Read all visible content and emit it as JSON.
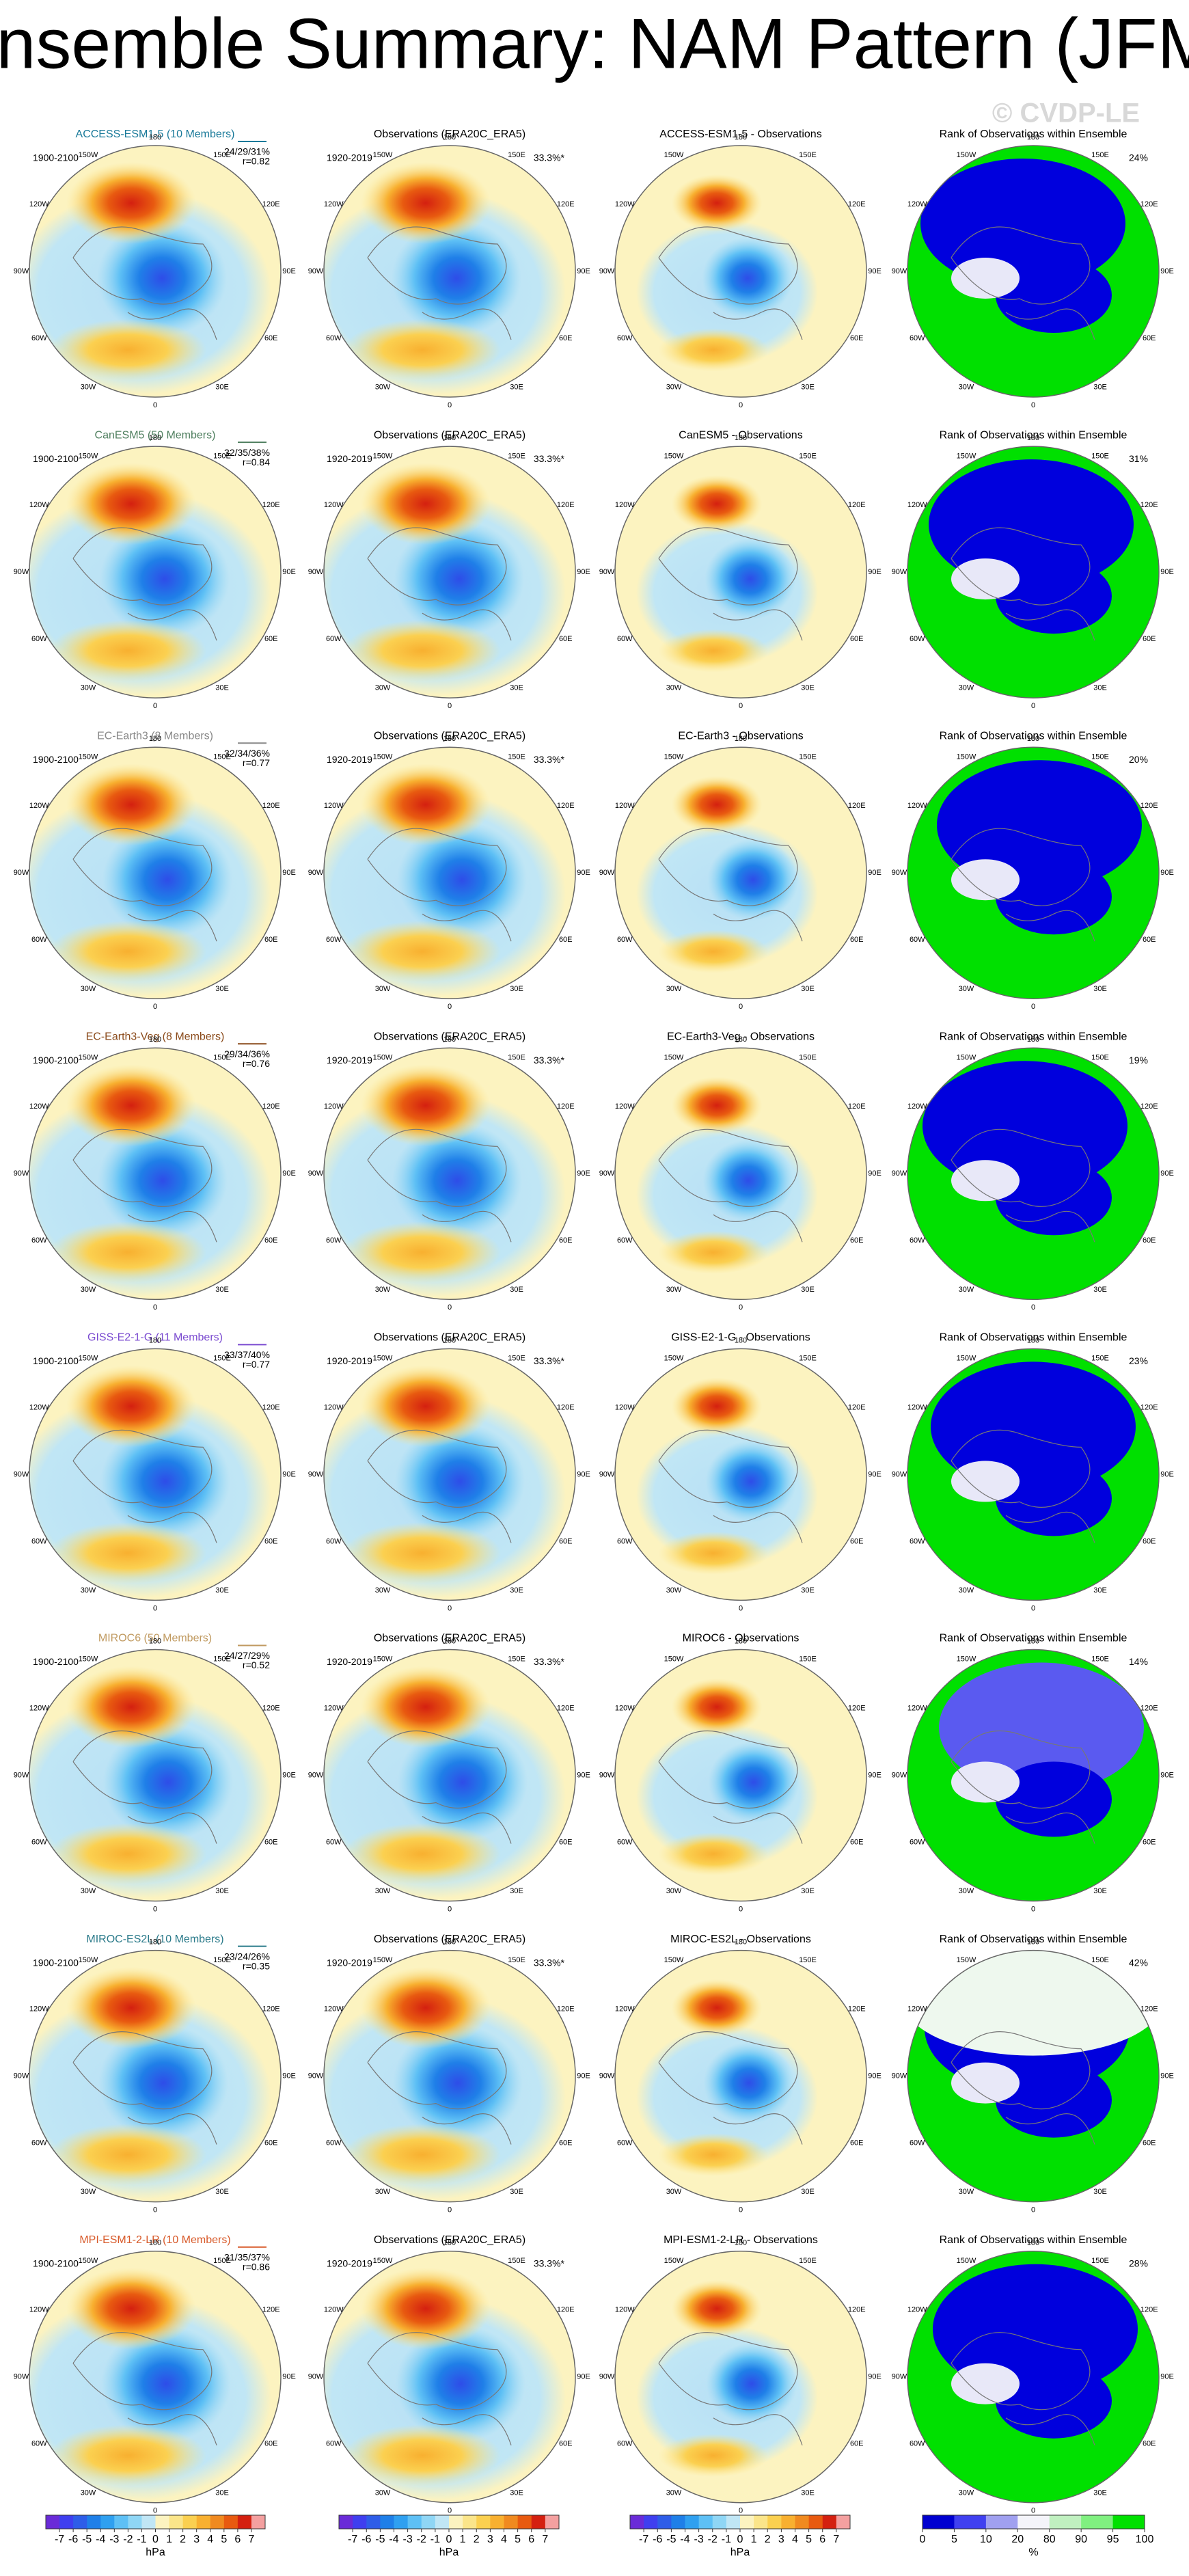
{
  "title": "Ensemble Summary: NAM Pattern (JFM)",
  "watermark": "© CVDP-LE",
  "lon_labels": [
    "180",
    "150E",
    "120E",
    "90E",
    "60E",
    "30E",
    "0",
    "30W",
    "60W",
    "90W",
    "120W",
    "150W"
  ],
  "rows": [
    {
      "model": "ACCESS-ESM1-5 (10 Members)",
      "color": "#1a7a9a",
      "period": "1900-2100",
      "stats": "24/29/31%",
      "r": "r=0.82",
      "obs_title": "Observations (ERA20C_ERA5)",
      "obs_period": "1920-2019",
      "obs_pct": "33.3%*",
      "diff_title": "ACCESS-ESM1-5 - Observations",
      "rank_title": "Rank of Observations within Ensemble",
      "rank_pct": "24%"
    },
    {
      "model": "CanESM5 (50 Members)",
      "color": "#4f7f5f",
      "period": "1900-2100",
      "stats": "32/35/38%",
      "r": "r=0.84",
      "obs_title": "Observations (ERA20C_ERA5)",
      "obs_period": "1920-2019",
      "obs_pct": "33.3%*",
      "diff_title": "CanESM5 - Observations",
      "rank_title": "Rank of Observations within Ensemble",
      "rank_pct": "31%"
    },
    {
      "model": "EC-Earth3 (8 Members)",
      "color": "#888888",
      "period": "1900-2100",
      "stats": "32/34/36%",
      "r": "r=0.77",
      "obs_title": "Observations (ERA20C_ERA5)",
      "obs_period": "1920-2019",
      "obs_pct": "33.3%*",
      "diff_title": "EC-Earth3 - Observations",
      "rank_title": "Rank of Observations within Ensemble",
      "rank_pct": "20%"
    },
    {
      "model": "EC-Earth3-Veg (8 Members)",
      "color": "#8a4a1a",
      "period": "1900-2100",
      "stats": "29/34/36%",
      "r": "r=0.76",
      "obs_title": "Observations (ERA20C_ERA5)",
      "obs_period": "1920-2019",
      "obs_pct": "33.3%*",
      "diff_title": "EC-Earth3-Veg - Observations",
      "rank_title": "Rank of Observations within Ensemble",
      "rank_pct": "19%"
    },
    {
      "model": "GISS-E2-1-G (11 Members)",
      "color": "#7a4ad0",
      "period": "1900-2100",
      "stats": "33/37/40%",
      "r": "r=0.77",
      "obs_title": "Observations (ERA20C_ERA5)",
      "obs_period": "1920-2019",
      "obs_pct": "33.3%*",
      "diff_title": "GISS-E2-1-G - Observations",
      "rank_title": "Rank of Observations within Ensemble",
      "rank_pct": "23%"
    },
    {
      "model": "MIROC6 (50 Members)",
      "color": "#c09a60",
      "period": "1900-2100",
      "stats": "24/27/29%",
      "r": "r=0.52",
      "obs_title": "Observations (ERA20C_ERA5)",
      "obs_period": "1920-2019",
      "obs_pct": "33.3%*",
      "diff_title": "MIROC6 - Observations",
      "rank_title": "Rank of Observations within Ensemble",
      "rank_pct": "14%"
    },
    {
      "model": "MIROC-ES2L (10 Members)",
      "color": "#2a7a8a",
      "period": "1900-2100",
      "stats": "23/24/26%",
      "r": "r=0.35",
      "obs_title": "Observations (ERA20C_ERA5)",
      "obs_period": "1920-2019",
      "obs_pct": "33.3%*",
      "diff_title": "MIROC-ES2L - Observations",
      "rank_title": "Rank of Observations within Ensemble",
      "rank_pct": "42%"
    },
    {
      "model": "MPI-ESM1-2-LR (10 Members)",
      "color": "#d85a2a",
      "period": "1900-2100",
      "stats": "31/35/37%",
      "r": "r=0.86",
      "obs_title": "Observations (ERA20C_ERA5)",
      "obs_period": "1920-2019",
      "obs_pct": "33.3%*",
      "diff_title": "MPI-ESM1-2-LR - Observations",
      "rank_title": "Rank of Observations within Ensemble",
      "rank_pct": "28%"
    }
  ],
  "colorbar_hpa": {
    "colors": [
      "#6a2bd8",
      "#3f3fef",
      "#2e5de8",
      "#1f7fe8",
      "#2fa0f0",
      "#5ec0f5",
      "#8fd6f5",
      "#c0e6f5",
      "#fcf3c0",
      "#fbe58a",
      "#fbd050",
      "#f8b030",
      "#f08a20",
      "#e85a10",
      "#d42010",
      "#f4a0a0"
    ],
    "ticks": [
      -7,
      -6,
      -5,
      -4,
      -3,
      -2,
      -1,
      0,
      1,
      2,
      3,
      4,
      5,
      6,
      7
    ],
    "unit": "hPa"
  },
  "colorbar_rank": {
    "colors": [
      "#0000d0",
      "#4040f0",
      "#a0a0f0",
      "#f4f4fa",
      "#c0f0c0",
      "#80f080",
      "#00e000"
    ],
    "ticks": [
      0,
      5,
      10,
      20,
      80,
      90,
      95,
      100
    ],
    "unit": "%"
  }
}
